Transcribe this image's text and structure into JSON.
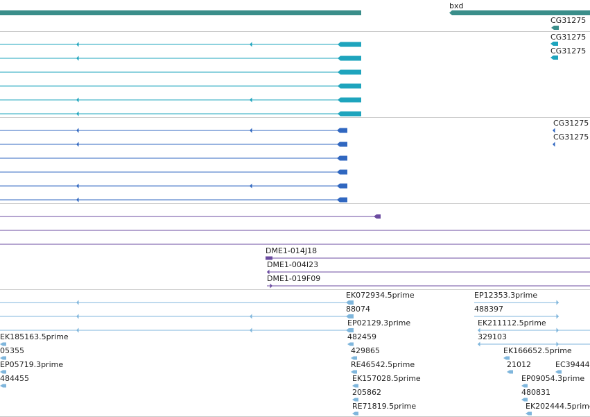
{
  "colors": {
    "gene": "#3a8e8a",
    "transcript_cg": "#1ea4bd",
    "transcript_blue": "#3067c0",
    "clone": "#6b4ba0",
    "est": "#7fb6dc",
    "separator": "#c6c6c6",
    "label": "#202020"
  },
  "tracks": {
    "genes": {
      "labels": [
        "bxd"
      ]
    },
    "cg_transcripts": {
      "labels": [
        "CG31275",
        "CG31275",
        "CG31275"
      ]
    },
    "protein_transcripts": {
      "labels": [
        "CG31275",
        "CG31275"
      ]
    },
    "clones": {
      "labels": [
        "DME1-014J18",
        "DME1-004I23",
        "DME1-019F09"
      ]
    },
    "ests": {
      "labels": [
        "EK072934.5prime",
        "EP12353.3prime",
        "88074",
        "488397",
        "EP02129.3prime",
        "EK211112.5prime",
        "EK185163.5prime",
        "482459",
        "329103",
        "05355",
        "429865",
        "EK166652.5prime",
        "EP05719.3prime",
        "RE46542.5prime",
        "21012",
        "EC39444",
        "484455",
        "EK157028.5prime",
        "EP09054.3prime",
        "205862",
        "480831",
        "RE71819.5prime",
        "EK202444.5prime"
      ]
    }
  }
}
